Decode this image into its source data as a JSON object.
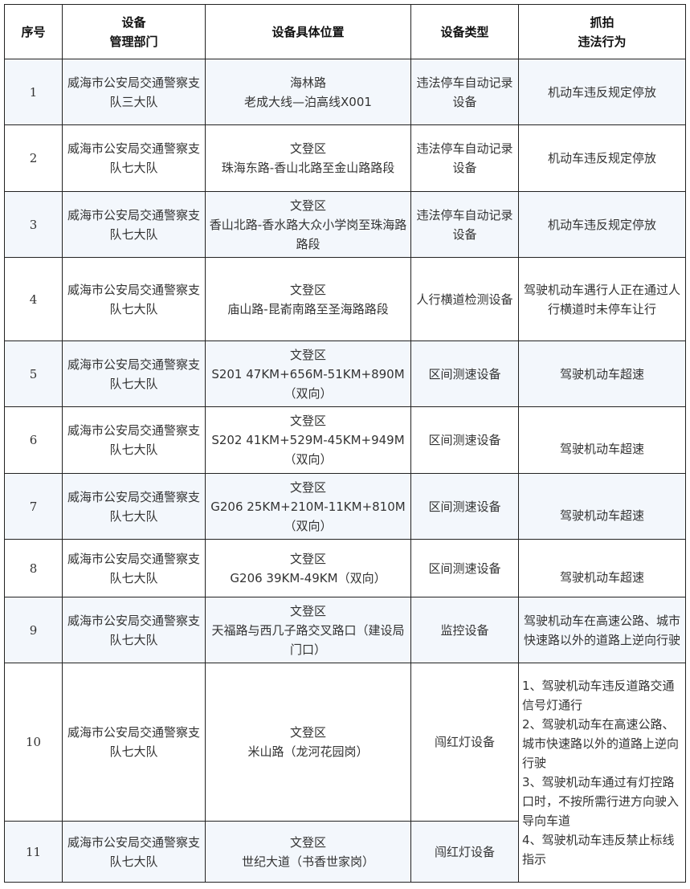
{
  "headers": [
    {
      "l1": "序号",
      "l2": ""
    },
    {
      "l1": "设备",
      "l2": "管理部门"
    },
    {
      "l1": "设备具体位置",
      "l2": ""
    },
    {
      "l1": "设备类型",
      "l2": ""
    },
    {
      "l1": "抓拍",
      "l2": "违法行为"
    }
  ],
  "rows": [
    {
      "no": "1",
      "dept": "威海市公安局交通警察支队三大队",
      "loc1": "海林路",
      "loc2": "老成大线—泊高线X001",
      "type": "违法停车自动记录设备",
      "act": "机动车违反规定停放"
    },
    {
      "no": "2",
      "dept": "威海市公安局交通警察支队七大队",
      "loc1": "文登区",
      "loc2": "珠海东路-香山北路至金山路路段",
      "type": "违法停车自动记录设备",
      "act": "机动车违反规定停放"
    },
    {
      "no": "3",
      "dept": "威海市公安局交通警察支队七大队",
      "loc1": "文登区",
      "loc2": "香山北路-香水路大众小学岗至珠海路路段",
      "type": "违法停车自动记录设备",
      "act": "机动车违反规定停放"
    },
    {
      "no": "4",
      "dept": "威海市公安局交通警察支队七大队",
      "loc1": "文登区",
      "loc2": "庙山路-昆嵛南路至圣海路路段",
      "type": "人行横道检测设备",
      "act": "驾驶机动车遇行人正在通过人行横道时未停车让行"
    },
    {
      "no": "5",
      "dept": "威海市公安局交通警察支队七大队",
      "loc1": "文登区",
      "loc2": "S201 47KM+656M-51KM+890M（双向）",
      "type": "区间测速设备",
      "act": "驾驶机动车超速"
    },
    {
      "no": "6",
      "dept": "威海市公安局交通警察支队七大队",
      "loc1": "文登区",
      "loc2": "S202 41KM+529M-45KM+949M（双向）",
      "type": "区间测速设备",
      "act": "驾驶机动车超速"
    },
    {
      "no": "7",
      "dept": "威海市公安局交通警察支队七大队",
      "loc1": "文登区",
      "loc2": "G206 25KM+210M-11KM+810M（双向）",
      "type": "区间测速设备",
      "act": "驾驶机动车超速"
    },
    {
      "no": "8",
      "dept": "威海市公安局交通警察支队七大队",
      "loc1": "文登区",
      "loc2": "G206 39KM-49KM（双向）",
      "type": "区间测速设备",
      "act": "驾驶机动车超速"
    },
    {
      "no": "9",
      "dept": "威海市公安局交通警察支队七大队",
      "loc1": "文登区",
      "loc2": "天福路与西几子路交叉路口（建设局门口）",
      "type": "监控设备",
      "act": "驾驶机动车在高速公路、城市快速路以外的道路上逆向行驶"
    },
    {
      "no": "10",
      "dept": "威海市公安局交通警察支队七大队",
      "loc1": "文登区",
      "loc2": "米山路（龙河花园岗）",
      "type": "闯红灯设备"
    },
    {
      "no": "11",
      "dept": "威海市公安局交通警察支队七大队",
      "loc1": "文登区",
      "loc2": "世纪大道（书香世家岗）",
      "type": "闯红灯设备"
    }
  ],
  "merged_act": [
    "1、驾驶机动车违反道路交通信号灯通行",
    "2、驾驶机动车在高速公路、城市快速路以外的道路上逆向行驶",
    "3、驾驶机动车通过有灯控路口时，不按所需行进方向驶入导向车道",
    "4、驾驶机动车违反禁止标线指示"
  ]
}
